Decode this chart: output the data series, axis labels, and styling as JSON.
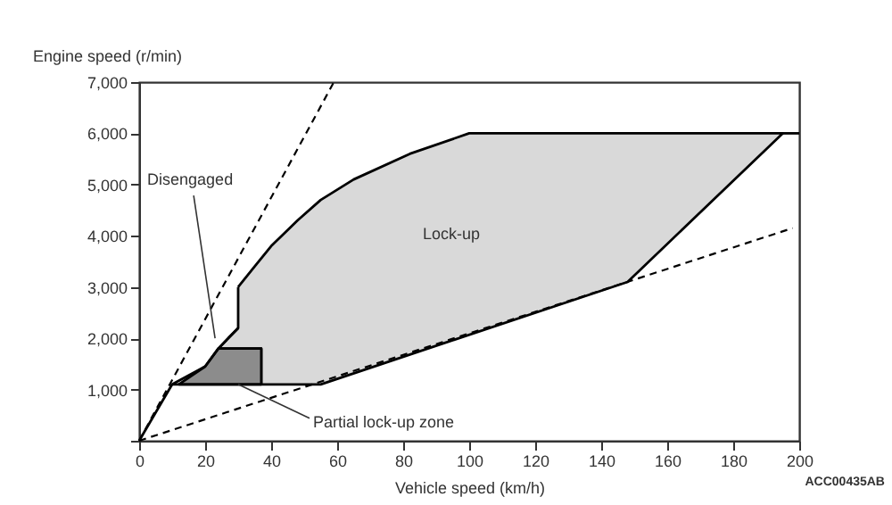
{
  "chart_data": {
    "type": "line",
    "xlabel": "Vehicle speed (km/h)",
    "ylabel": "Engine speed (r/min)",
    "xlim": [
      0,
      200
    ],
    "xticks": [
      0,
      20,
      40,
      60,
      80,
      100,
      120,
      140,
      160,
      180,
      200
    ],
    "ylim": [
      0,
      7000
    ],
    "yticks": [
      {
        "value": 0,
        "label": null
      },
      {
        "value": 1000,
        "label": "1,000"
      },
      {
        "value": 2000,
        "label": "2,000"
      },
      {
        "value": 3000,
        "label": "3,000"
      },
      {
        "value": 4000,
        "label": "4,000"
      },
      {
        "value": 5000,
        "label": "5,000"
      },
      {
        "value": 6000,
        "label": "6,000"
      },
      {
        "value": 7000,
        "label": "7,000"
      }
    ],
    "grid": false,
    "series": [
      {
        "type": "area",
        "color": "#d9d9d9",
        "x": [
          30,
          35,
          40,
          48,
          55,
          65,
          82,
          100,
          195,
          148,
          55,
          37,
          37,
          24,
          30,
          30
        ],
        "values": [
          3000,
          3400,
          3800,
          4300,
          4700,
          5100,
          5600,
          6000,
          6000,
          3100,
          1100,
          1100,
          1800,
          1800,
          2200,
          3000
        ]
      },
      {
        "type": "area",
        "color": "#8c8c8c",
        "x": [
          12,
          37,
          37,
          24,
          20,
          12
        ],
        "values": [
          1100,
          1100,
          1800,
          1800,
          1450,
          1100
        ]
      },
      {
        "color": "#000000",
        "line_style": "solid",
        "x": [
          0,
          10,
          20,
          24,
          30
        ],
        "values": [
          0,
          1100,
          1450,
          1800,
          2200
        ]
      },
      {
        "color": "#000000",
        "line_style": "solid",
        "x": [
          10,
          37
        ],
        "values": [
          1100,
          1100
        ]
      },
      {
        "color": "#000000",
        "line_style": "solid",
        "x": [
          195,
          200
        ],
        "values": [
          6000,
          6000
        ]
      },
      {
        "color": "#000000",
        "line_style": "dashed",
        "x": [
          0,
          59
        ],
        "values": [
          0,
          7000
        ]
      },
      {
        "color": "#000000",
        "line_style": "dashed",
        "x": [
          0,
          198
        ],
        "values": [
          0,
          4150
        ]
      }
    ],
    "annotations": [
      {
        "text": "Disengaged",
        "x": 23,
        "y": 2000
      },
      "Lock-up",
      {
        "text": "Partial lock-up zone",
        "x": 30,
        "y": 1100
      },
      "ACC00435AB"
    ]
  }
}
